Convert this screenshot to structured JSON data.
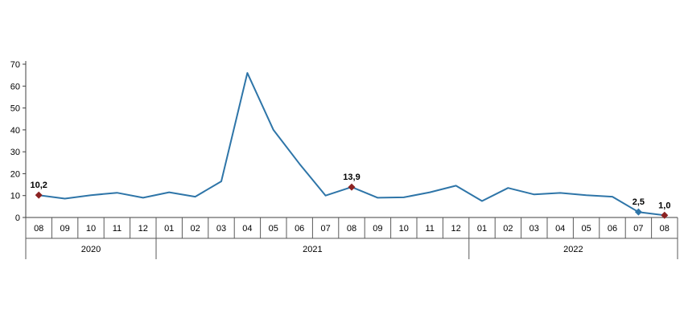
{
  "chart_data": {
    "type": "line",
    "title": "",
    "xlabel": "",
    "ylabel": "",
    "ylim": [
      0,
      70
    ],
    "yticks": [
      0,
      10,
      20,
      30,
      40,
      50,
      60,
      70
    ],
    "legend": [],
    "grid": false,
    "colors": {
      "line": "#2E75A8",
      "marker_red": "#8B2222",
      "marker_blue": "#2E75A8",
      "axis": "#404040",
      "table_border": "#595959",
      "label_text": "#000000"
    },
    "groups": [
      {
        "year": "2020",
        "months": [
          "08",
          "09",
          "10",
          "11",
          "12"
        ]
      },
      {
        "year": "2021",
        "months": [
          "01",
          "02",
          "03",
          "04",
          "05",
          "06",
          "07",
          "08",
          "09",
          "10",
          "11",
          "12"
        ]
      },
      {
        "year": "2022",
        "months": [
          "01",
          "02",
          "03",
          "04",
          "05",
          "06",
          "07",
          "08"
        ]
      }
    ],
    "values": [
      10.2,
      8.6,
      10.2,
      11.3,
      9.0,
      11.5,
      9.5,
      16.5,
      66.0,
      40.0,
      24.5,
      10.0,
      13.9,
      9.0,
      9.2,
      11.5,
      14.5,
      7.5,
      13.5,
      10.5,
      11.2,
      10.2,
      9.5,
      2.5,
      1.0
    ],
    "annotations": [
      {
        "index": 0,
        "label": "10,2",
        "marker": "red"
      },
      {
        "index": 12,
        "label": "13,9",
        "marker": "red"
      },
      {
        "index": 23,
        "label": "2,5",
        "marker": "blue"
      },
      {
        "index": 24,
        "label": "1,0",
        "marker": "red"
      }
    ]
  }
}
